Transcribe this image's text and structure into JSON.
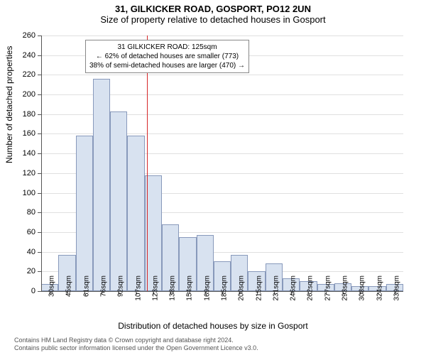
{
  "title": "31, GILKICKER ROAD, GOSPORT, PO12 2UN",
  "subtitle": "Size of property relative to detached houses in Gosport",
  "y_axis_label": "Number of detached properties",
  "x_axis_label": "Distribution of detached houses by size in Gosport",
  "footer_line1": "Contains HM Land Registry data © Crown copyright and database right 2024.",
  "footer_line2": "Contains public sector information licensed under the Open Government Licence v3.0.",
  "chart": {
    "type": "histogram",
    "bar_fill": "#d8e2f0",
    "bar_stroke": "#8899bb",
    "grid_color": "#e0e0e0",
    "axis_color": "#555555",
    "marker_color": "#d62728",
    "background": "#ffffff",
    "ylim": [
      0,
      260
    ],
    "ytick_step": 20,
    "x_categories": [
      "30sqm",
      "45sqm",
      "61sqm",
      "76sqm",
      "92sqm",
      "107sqm",
      "123sqm",
      "138sqm",
      "154sqm",
      "169sqm",
      "185sqm",
      "200sqm",
      "215sqm",
      "231sqm",
      "246sqm",
      "262sqm",
      "277sqm",
      "293sqm",
      "308sqm",
      "324sqm",
      "339sqm"
    ],
    "values": [
      7,
      37,
      158,
      216,
      183,
      158,
      118,
      68,
      55,
      57,
      30,
      37,
      20,
      28,
      13,
      10,
      7,
      8,
      5,
      5,
      7
    ],
    "marker_index_line": 6.15,
    "annotation": {
      "line1": "31 GILKICKER ROAD: 125sqm",
      "line2": "← 62% of detached houses are smaller (773)",
      "line3": "38% of semi-detached houses are larger (470) →"
    },
    "label_fontsize": 12,
    "tick_fontsize": 11
  }
}
